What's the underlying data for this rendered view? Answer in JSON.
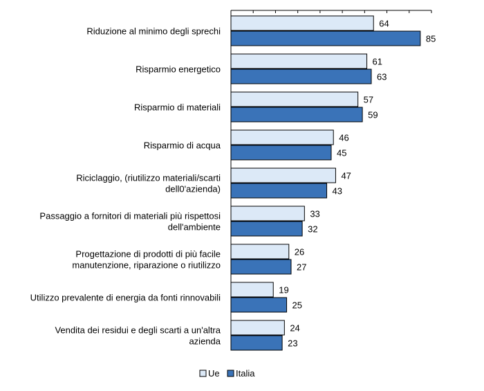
{
  "chart_data": {
    "type": "bar",
    "orientation": "horizontal",
    "categories": [
      "Riduzione al minimo degli sprechi",
      "Risparmio energetico",
      "Risparmio di materiali",
      "Risparmio di acqua",
      "Riciclaggio, (riutilizzo materiali/scarti dell0'azienda)",
      "Passaggio a fornitori di materiali più rispettosi dell'ambiente",
      "Progettazione di prodotti di più facile manutenzione, riparazione o riutilizzo",
      "Utilizzo prevalente di energia da fonti rinnovabili",
      "Vendita dei residui e degli scarti a un'altra azienda"
    ],
    "category_lines": [
      [
        "Riduzione al minimo degli sprechi"
      ],
      [
        "Risparmio energetico"
      ],
      [
        "Risparmio di materiali"
      ],
      [
        "Risparmio di acqua"
      ],
      [
        "Riciclaggio, (riutilizzo materiali/scarti",
        "dell0'azienda)"
      ],
      [
        "Passaggio a fornitori di materiali più rispettosi",
        "dell'ambiente"
      ],
      [
        "Progettazione di prodotti di più facile",
        "manutenzione, riparazione o riutilizzo"
      ],
      [
        "Utilizzo prevalente di energia da fonti rinnovabili"
      ],
      [
        "Vendita dei residui e degli scarti a un'altra",
        "azienda"
      ]
    ],
    "series": [
      {
        "name": "Ue",
        "color": "#dce9f7",
        "values": [
          64,
          61,
          57,
          46,
          47,
          33,
          26,
          19,
          24
        ]
      },
      {
        "name": "Italia",
        "color": "#3a73b8",
        "values": [
          85,
          63,
          59,
          45,
          43,
          32,
          27,
          25,
          23
        ]
      }
    ],
    "xlim": [
      0,
      90
    ],
    "x_tick_step": 10,
    "x_tick_labels_shown": false,
    "legend_position": "bottom-center",
    "grid": false
  }
}
